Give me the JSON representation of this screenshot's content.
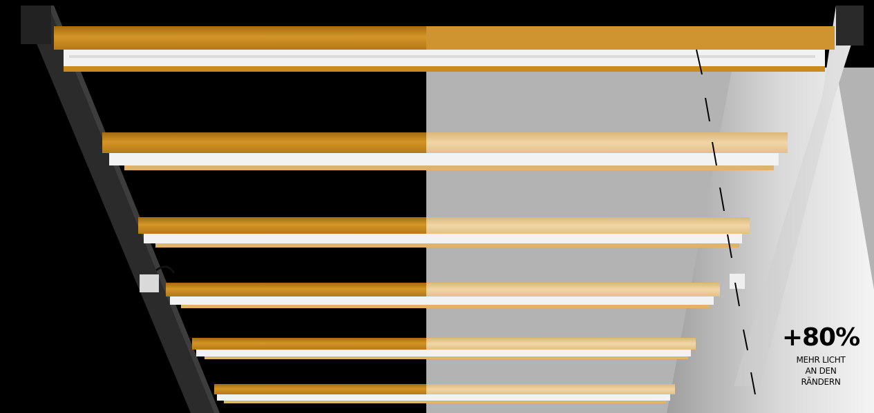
{
  "scene": {
    "subject": "led-grow-light-bars",
    "bar_count": 6,
    "colors": {
      "background": "#000000",
      "bar_amber": "#c98a1e",
      "bar_amber_light": "#e9c98f",
      "lit_panel": "#b3b3b3",
      "frame": "#2b2b2b",
      "diode_strip": "#f2f2f2"
    }
  },
  "callout": {
    "percentage": "+80%",
    "lines": [
      "MEHR LICHT",
      "AN DEN",
      "RÄNDERN"
    ]
  }
}
